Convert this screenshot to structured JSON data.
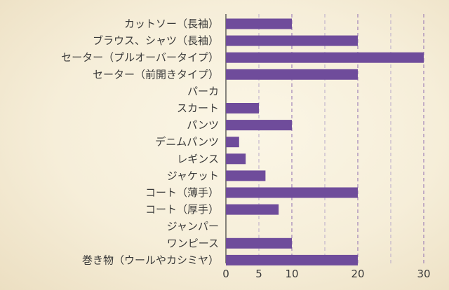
{
  "chart_data": {
    "type": "bar",
    "orientation": "horizontal",
    "title": "",
    "xlabel": "",
    "ylabel": "",
    "categories": [
      "カットソー（長袖）",
      "ブラウス、シャツ（長袖）",
      "セーター（プルオーバータイプ）",
      "セーター（前開きタイプ）",
      "パーカ",
      "スカート",
      "パンツ",
      "デニムパンツ",
      "レギンス",
      "ジャケット",
      "コート（薄手）",
      "コート（厚手）",
      "ジャンパー",
      "ワンピース",
      "巻き物（ウールやカシミヤ）"
    ],
    "values": [
      10,
      20,
      30,
      20,
      0,
      5,
      10,
      2,
      3,
      6,
      20,
      8,
      0,
      10,
      20
    ],
    "xlim": [
      0,
      30
    ],
    "ticks": [
      0,
      5,
      10,
      20,
      30
    ],
    "tick_labels": [
      "0",
      "5",
      "10",
      "20",
      "30"
    ],
    "grid": true,
    "bar_color": "#6f4c9b"
  }
}
